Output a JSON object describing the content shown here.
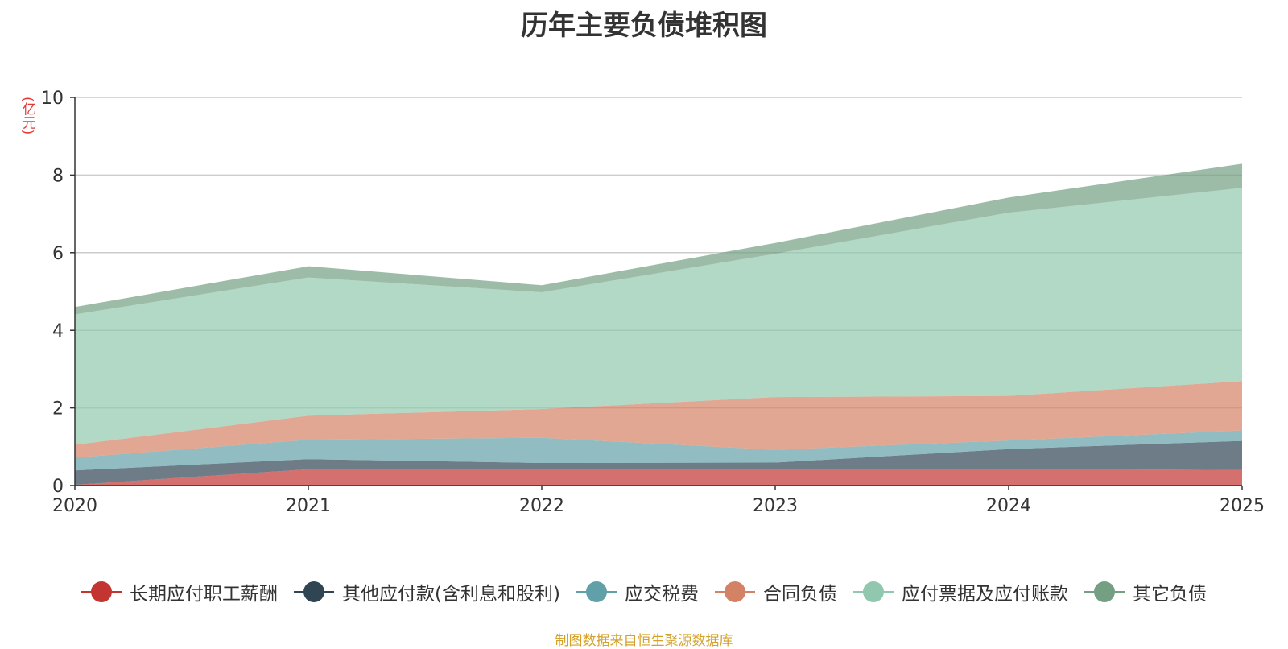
{
  "chart_data": {
    "type": "area",
    "stacked": true,
    "title": "历年主要负债堆积图",
    "unit_label": "(亿元)",
    "x": [
      "2020",
      "2021",
      "2022",
      "2023",
      "2024",
      "2025"
    ],
    "ylim": [
      0,
      10
    ],
    "yticks": [
      0,
      2,
      4,
      6,
      8,
      10
    ],
    "grid": true,
    "legend_position": "bottom",
    "series": [
      {
        "name": "长期应付职工薪酬",
        "color": "#c23531",
        "values": [
          0.02,
          0.42,
          0.42,
          0.42,
          0.43,
          0.4
        ]
      },
      {
        "name": "其他应付款(含利息和股利)",
        "color": "#2f4554",
        "values": [
          0.37,
          0.26,
          0.16,
          0.17,
          0.51,
          0.75
        ]
      },
      {
        "name": "应交税费",
        "color": "#61a0a8",
        "values": [
          0.33,
          0.5,
          0.65,
          0.33,
          0.22,
          0.27
        ]
      },
      {
        "name": "合同负债",
        "color": "#d48265",
        "values": [
          0.33,
          0.62,
          0.74,
          1.36,
          1.15,
          1.27
        ]
      },
      {
        "name": "应付票据及应付账款",
        "color": "#91c7ae",
        "values": [
          3.36,
          3.56,
          3.01,
          3.69,
          4.72,
          4.98
        ]
      },
      {
        "name": "其它负债",
        "color": "#749f83",
        "values": [
          0.19,
          0.29,
          0.18,
          0.28,
          0.39,
          0.62
        ]
      }
    ]
  },
  "source_note": "制图数据来自恒生聚源数据库"
}
